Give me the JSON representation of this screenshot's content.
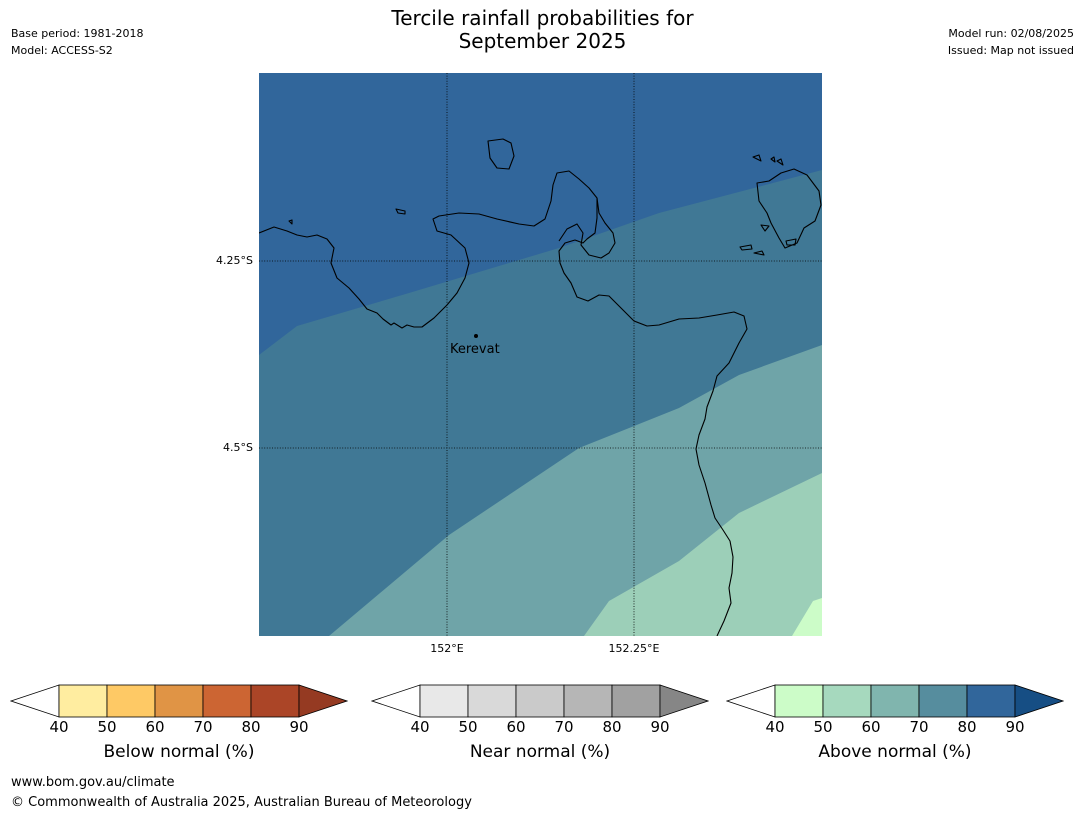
{
  "header": {
    "title_line1": "Tercile rainfall probabilities for",
    "title_line2": "September 2025",
    "base_period": "Base period: 1981-2018",
    "model": "Model: ACCESS-S2",
    "model_run": "Model run: 02/08/2025",
    "issued": "Issued: Map not issued"
  },
  "map": {
    "latitude_labels": [
      "4.25°S",
      "4.5°S"
    ],
    "longitude_labels": [
      "152°E",
      "152.25°E"
    ],
    "place_label": "Kerevat",
    "band_colors": {
      "above_70_80": "#31669b",
      "above_60_70": "#407895",
      "above_50_60": "#6fa4a8",
      "above_40_50": "#9ccfb8",
      "above_lt40": "#ccfcc8"
    }
  },
  "colorbars": [
    {
      "label": "Below normal (%)",
      "ticks": [
        "40",
        "50",
        "60",
        "70",
        "80",
        "90"
      ],
      "colors": [
        "#ffffff",
        "#ffeda0",
        "#fec965",
        "#e09445",
        "#cc6533",
        "#ab4527",
        "#953a22"
      ]
    },
    {
      "label": "Near normal (%)",
      "ticks": [
        "40",
        "50",
        "60",
        "70",
        "80",
        "90"
      ],
      "colors": [
        "#ffffff",
        "#e8e8e8",
        "#d9d9d9",
        "#cacaca",
        "#b6b6b6",
        "#a1a1a1",
        "#868686"
      ]
    },
    {
      "label": "Above normal (%)",
      "ticks": [
        "40",
        "50",
        "60",
        "70",
        "80",
        "90"
      ],
      "colors": [
        "#ffffff",
        "#ccfcc8",
        "#a6d9be",
        "#80b5ae",
        "#568d9e",
        "#31669b",
        "#164e84"
      ]
    }
  ],
  "footer": {
    "website": "www.bom.gov.au/climate",
    "copyright": "© Commonwealth of Australia 2025, Australian Bureau of Meteorology"
  }
}
